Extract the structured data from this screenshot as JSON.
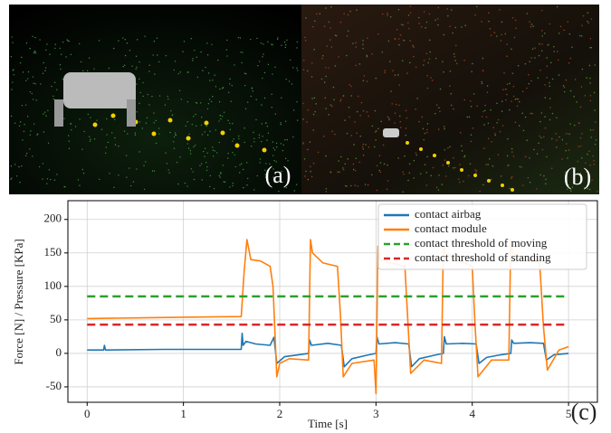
{
  "chart_data": {
    "type": "line",
    "annotations": [
      "(a)",
      "(b)",
      "(c)"
    ],
    "xlabel": "Time [s]",
    "ylabel": "Force [N] / Pressure [KPa]",
    "xlim": [
      -0.2,
      5.3
    ],
    "ylim": [
      -73,
      228
    ],
    "xticks": [
      0,
      1,
      2,
      3,
      4,
      5
    ],
    "yticks": [
      -50,
      0,
      50,
      100,
      150,
      200
    ],
    "grid": true,
    "legend": "upper right",
    "series": [
      {
        "name": "contact airbag",
        "color": "#1f77b4",
        "linestyle": "solid",
        "x": [
          0,
          0.17,
          0.18,
          0.19,
          0.8,
          1.6,
          1.61,
          1.62,
          1.65,
          1.75,
          1.9,
          1.94,
          1.97,
          2.05,
          2.2,
          2.3,
          2.31,
          2.33,
          2.5,
          2.64,
          2.67,
          2.75,
          2.9,
          3.0,
          3.01,
          3.03,
          3.2,
          3.34,
          3.37,
          3.45,
          3.6,
          3.7,
          3.71,
          3.73,
          3.9,
          4.04,
          4.07,
          4.15,
          4.3,
          4.4,
          4.41,
          4.43,
          4.6,
          4.74,
          4.77,
          4.85,
          5.0
        ],
        "values": [
          5,
          5,
          12,
          5,
          6,
          6,
          30,
          12,
          18,
          14,
          12,
          24,
          -15,
          -5,
          -2,
          0,
          20,
          12,
          15,
          12,
          -20,
          -8,
          -3,
          0,
          25,
          14,
          16,
          14,
          -20,
          -8,
          -3,
          0,
          25,
          14,
          15,
          14,
          -15,
          -6,
          -2,
          0,
          20,
          15,
          16,
          15,
          -10,
          -2,
          0
        ]
      },
      {
        "name": "contact module",
        "color": "#ff7f0e",
        "linestyle": "solid",
        "x": [
          0,
          0.5,
          1.0,
          1.6,
          1.63,
          1.66,
          1.7,
          1.8,
          1.9,
          1.93,
          1.97,
          2.0,
          2.1,
          2.3,
          2.32,
          2.34,
          2.45,
          2.6,
          2.63,
          2.66,
          2.75,
          2.98,
          3.0,
          3.02,
          3.04,
          3.15,
          3.3,
          3.33,
          3.36,
          3.5,
          3.68,
          3.7,
          3.72,
          3.85,
          4.0,
          4.03,
          4.06,
          4.2,
          4.38,
          4.4,
          4.42,
          4.55,
          4.7,
          4.74,
          4.78,
          4.9,
          5.0
        ],
        "values": [
          52,
          53,
          54,
          55,
          120,
          170,
          140,
          138,
          130,
          100,
          -35,
          -15,
          -8,
          -10,
          170,
          150,
          135,
          130,
          60,
          -35,
          -15,
          -10,
          -60,
          160,
          140,
          135,
          130,
          50,
          -30,
          -10,
          -15,
          160,
          150,
          140,
          130,
          40,
          -35,
          -10,
          -10,
          170,
          150,
          140,
          135,
          40,
          -25,
          5,
          10
        ]
      },
      {
        "name": "contact threshold of moving",
        "color": "#2ca02c",
        "linestyle": "dashed",
        "x": [
          0,
          5
        ],
        "values": [
          85,
          85
        ]
      },
      {
        "name": "contact threshold of standing",
        "color": "#d62728",
        "linestyle": "dashed",
        "x": [
          0,
          5
        ],
        "values": [
          43,
          43
        ]
      }
    ]
  }
}
